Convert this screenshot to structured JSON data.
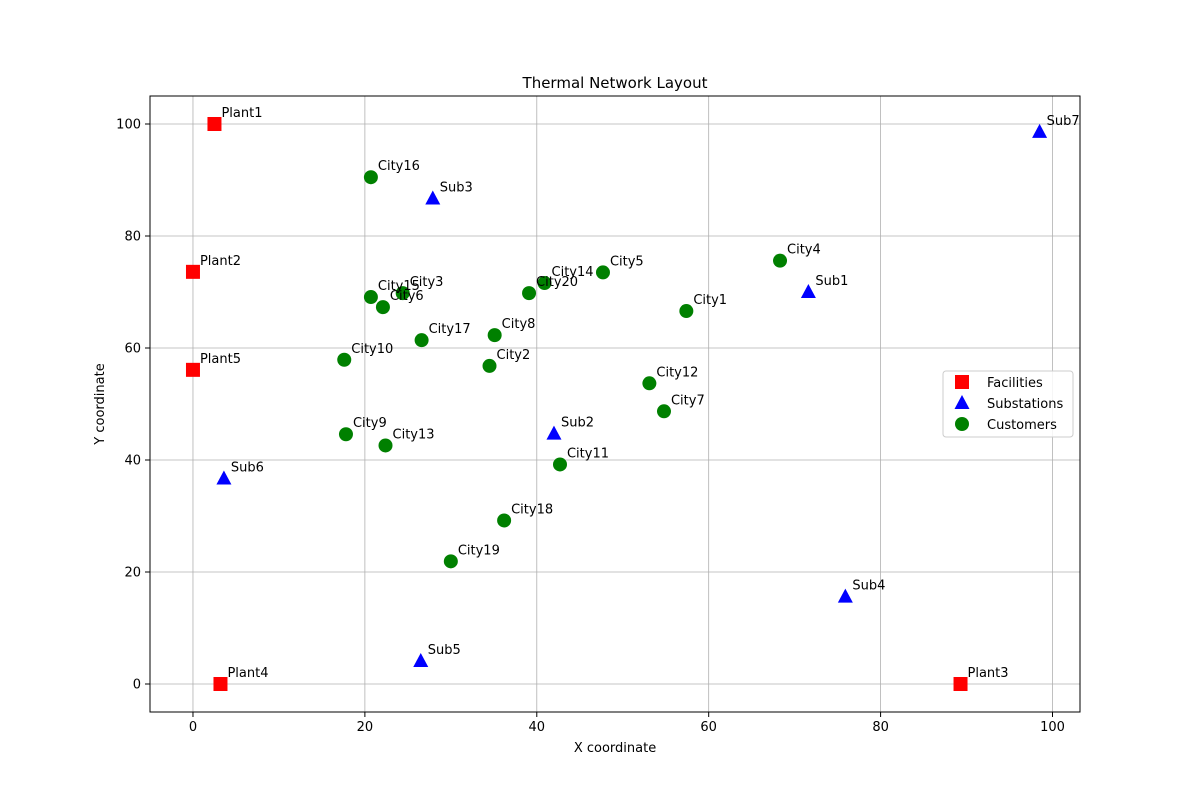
{
  "chart_data": {
    "type": "scatter",
    "title": "Thermal Network Layout",
    "xlabel": "X coordinate",
    "ylabel": "Y coordinate",
    "xlim": [
      -5,
      103.2
    ],
    "ylim": [
      -5,
      105
    ],
    "xticks": [
      0,
      20,
      40,
      60,
      80,
      100
    ],
    "yticks": [
      0,
      20,
      40,
      60,
      80,
      100
    ],
    "grid": true,
    "legend_position": "center-right",
    "series": [
      {
        "name": "Facilities",
        "marker": "square",
        "color": "#ff0000",
        "points": [
          {
            "label": "Plant1",
            "x": 2.5,
            "y": 100.0
          },
          {
            "label": "Plant2",
            "x": 0.0,
            "y": 73.6
          },
          {
            "label": "Plant3",
            "x": 89.3,
            "y": 0.0
          },
          {
            "label": "Plant4",
            "x": 3.2,
            "y": 0.0
          },
          {
            "label": "Plant5",
            "x": 0.0,
            "y": 56.1
          }
        ]
      },
      {
        "name": "Substations",
        "marker": "triangle",
        "color": "#0000ff",
        "points": [
          {
            "label": "Sub1",
            "x": 71.6,
            "y": 70.0
          },
          {
            "label": "Sub2",
            "x": 42.0,
            "y": 44.7
          },
          {
            "label": "Sub3",
            "x": 27.9,
            "y": 86.7
          },
          {
            "label": "Sub4",
            "x": 75.9,
            "y": 15.6
          },
          {
            "label": "Sub5",
            "x": 26.5,
            "y": 4.1
          },
          {
            "label": "Sub6",
            "x": 3.6,
            "y": 36.7
          },
          {
            "label": "Sub7",
            "x": 98.5,
            "y": 98.6
          }
        ]
      },
      {
        "name": "Customers",
        "marker": "circle",
        "color": "#008000",
        "points": [
          {
            "label": "City1",
            "x": 57.4,
            "y": 66.6
          },
          {
            "label": "City2",
            "x": 34.5,
            "y": 56.8
          },
          {
            "label": "City3",
            "x": 24.4,
            "y": 69.8
          },
          {
            "label": "City4",
            "x": 68.3,
            "y": 75.6
          },
          {
            "label": "City5",
            "x": 47.7,
            "y": 73.5
          },
          {
            "label": "City6",
            "x": 22.1,
            "y": 67.3
          },
          {
            "label": "City7",
            "x": 54.8,
            "y": 48.7
          },
          {
            "label": "City8",
            "x": 35.1,
            "y": 62.3
          },
          {
            "label": "City9",
            "x": 17.8,
            "y": 44.6
          },
          {
            "label": "City10",
            "x": 17.6,
            "y": 57.9
          },
          {
            "label": "City11",
            "x": 42.7,
            "y": 39.2
          },
          {
            "label": "City12",
            "x": 53.1,
            "y": 53.7
          },
          {
            "label": "City13",
            "x": 22.4,
            "y": 42.6
          },
          {
            "label": "City14",
            "x": 40.9,
            "y": 71.6
          },
          {
            "label": "City15",
            "x": 20.7,
            "y": 69.1
          },
          {
            "label": "City16",
            "x": 20.7,
            "y": 90.5
          },
          {
            "label": "City17",
            "x": 26.6,
            "y": 61.4
          },
          {
            "label": "City18",
            "x": 36.2,
            "y": 29.2
          },
          {
            "label": "City19",
            "x": 30.0,
            "y": 21.9
          },
          {
            "label": "City20",
            "x": 39.1,
            "y": 69.8
          }
        ]
      }
    ]
  }
}
